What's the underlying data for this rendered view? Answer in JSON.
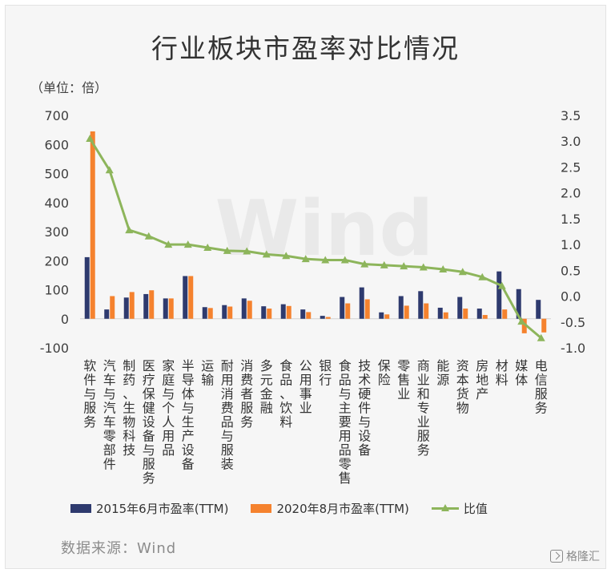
{
  "source": "数据来源：Wind",
  "brand": "格隆汇",
  "colors": {
    "series1": "#2e3a6e",
    "series2": "#f5822e",
    "ratio": "#8db55b"
  },
  "chart_data": {
    "type": "bar",
    "title": "行业板块市盈率对比情况",
    "unit_label": "（单位：倍）",
    "categories": [
      "软件与服务",
      "汽车与汽车零部件",
      "制药、生物科技",
      "医疗保健设备与服务",
      "家庭与个人用品",
      "半导体与生产设备",
      "运输",
      "耐用消费品与服装",
      "消费者服务",
      "多元金融",
      "食品、饮料",
      "公用事业",
      "银行",
      "食品与主要用品零售",
      "技术硬件与设备",
      "保险",
      "零售业",
      "商业和专业服务",
      "能源",
      "资本货物",
      "房地产",
      "材料",
      "媒体",
      "电信服务"
    ],
    "series": [
      {
        "name": "2015年6月市盈率(TTM)",
        "values": [
          212,
          32,
          73,
          85,
          70,
          147,
          40,
          47,
          70,
          43,
          50,
          32,
          10,
          75,
          108,
          22,
          78,
          95,
          38,
          75,
          35,
          163,
          102,
          65
        ]
      },
      {
        "name": "2020年8月市盈率(TTM)",
        "values": [
          645,
          78,
          92,
          98,
          70,
          147,
          37,
          42,
          62,
          35,
          44,
          23,
          6,
          53,
          67,
          15,
          45,
          53,
          22,
          35,
          13,
          32,
          -50,
          -47
        ]
      },
      {
        "name": "比值",
        "type": "line",
        "axis": "right",
        "values": [
          3.05,
          2.44,
          1.28,
          1.16,
          1.0,
          1.0,
          0.94,
          0.88,
          0.87,
          0.81,
          0.78,
          0.72,
          0.7,
          0.7,
          0.62,
          0.6,
          0.58,
          0.56,
          0.52,
          0.47,
          0.37,
          0.2,
          -0.49,
          -0.81
        ]
      }
    ],
    "ylim": [
      -100,
      700
    ],
    "yticks": [
      700,
      600,
      500,
      400,
      300,
      200,
      100,
      0,
      -100
    ],
    "y2lim": [
      -1.0,
      3.5
    ],
    "y2ticks": [
      "3.5",
      "3.0",
      "2.5",
      "2.0",
      "1.5",
      "1.0",
      "0.5",
      "0.0",
      "-0.5",
      "-1.0"
    ],
    "legend_position": "bottom",
    "grid": false,
    "watermark": "Wind"
  }
}
